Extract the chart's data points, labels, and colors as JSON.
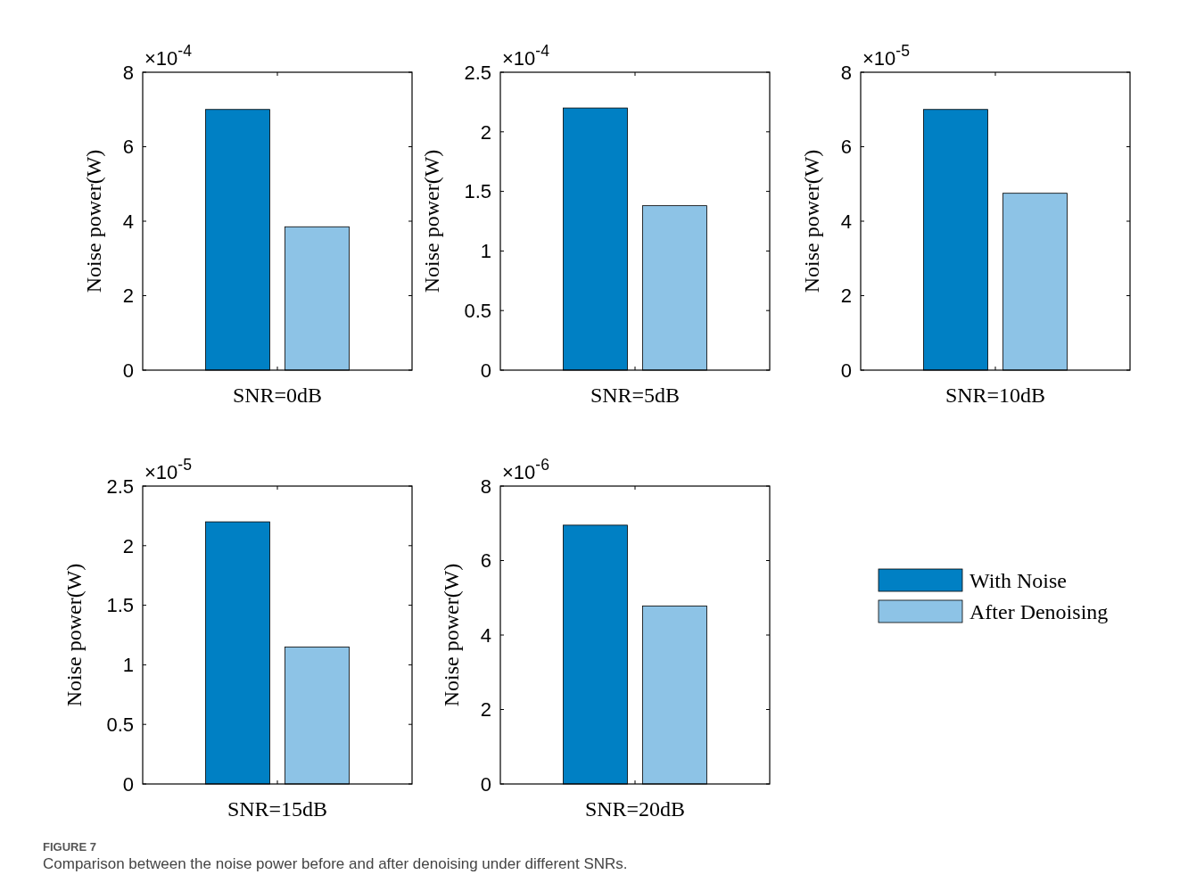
{
  "chart_data": [
    {
      "type": "bar",
      "ylabel": "Noise power(W)",
      "categories": [
        "SNR=0dB"
      ],
      "ylim": [
        0,
        8
      ],
      "yticks": [
        0,
        2,
        4,
        6,
        8
      ],
      "legend": false,
      "series": [
        {
          "color": "#0080c4",
          "values": [
            7
          ]
        },
        {
          "color": "#8dc3e6",
          "values": [
            3.85
          ]
        }
      ],
      "annotations": [
        "×10$^{-4}$",
        "FIGURE 7",
        "Comparison between the noise power before and after denoising under different SNRs."
      ]
    },
    {
      "type": "bar",
      "ylabel": "Noise power(W)",
      "categories": [
        "SNR=5dB"
      ],
      "ylim": [
        0,
        2.5
      ],
      "yticks": [
        0,
        0.5,
        1,
        1.5,
        2,
        2.5
      ],
      "legend": false,
      "series": [
        {
          "color": "#0080c4",
          "values": [
            2.2
          ]
        },
        {
          "color": "#8dc3e6",
          "values": [
            1.38
          ]
        }
      ],
      "annotations": [
        "×10$^{-4}$"
      ]
    },
    {
      "type": "bar",
      "ylabel": "Noise power(W)",
      "categories": [
        "SNR=10dB"
      ],
      "ylim": [
        0,
        8
      ],
      "yticks": [
        0,
        2,
        4,
        6,
        8
      ],
      "legend": false,
      "series": [
        {
          "color": "#0080c4",
          "values": [
            7
          ]
        },
        {
          "color": "#8dc3e6",
          "values": [
            4.75
          ]
        }
      ],
      "annotations": [
        "×10$^{-5}$"
      ]
    },
    {
      "type": "bar",
      "ylabel": "Noise power(W)",
      "categories": [
        "SNR=15dB"
      ],
      "ylim": [
        0,
        2.5
      ],
      "yticks": [
        0,
        0.5,
        1,
        1.5,
        2,
        2.5
      ],
      "legend": false,
      "series": [
        {
          "color": "#0080c4",
          "values": [
            2.2
          ]
        },
        {
          "color": "#8dc3e6",
          "values": [
            1.15
          ]
        }
      ],
      "annotations": [
        "×10$^{-5}$"
      ]
    },
    {
      "type": "bar",
      "ylabel": "Noise power(W)",
      "categories": [
        "SNR=20dB"
      ],
      "ylim": [
        0,
        8
      ],
      "yticks": [
        0,
        2,
        4,
        6,
        8
      ],
      "legend": "right",
      "series": [
        {
          "name": "With Noise",
          "color": "#0080c4",
          "values": [
            6.95
          ]
        },
        {
          "name": "After Denoising",
          "color": "#8dc3e6",
          "values": [
            4.78
          ]
        }
      ],
      "annotations": [
        "×10$^{-6}$"
      ]
    }
  ]
}
